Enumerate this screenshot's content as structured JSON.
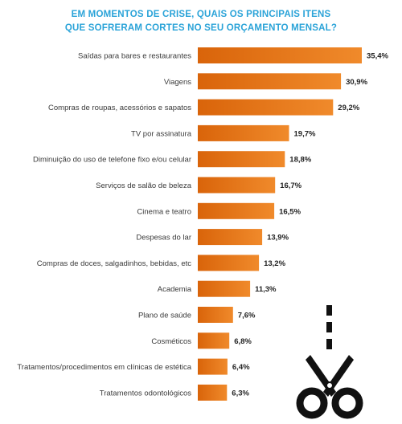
{
  "title_lines": [
    "EM MOMENTOS DE CRISE, QUAIS OS PRINCIPAIS ITENS",
    "QUE SOFRERAM CORTES NO SEU ORÇAMENTO MENSAL?"
  ],
  "colors": {
    "title": "#2aa3d8",
    "bar_light": "#f08a2b",
    "bar_dark": "#d9640a",
    "scissors": "#111111"
  },
  "icons": {
    "decoration": "scissors-icon"
  },
  "chart_data": {
    "type": "bar",
    "orientation": "horizontal",
    "title": "EM MOMENTOS DE CRISE, QUAIS OS PRINCIPAIS ITENS QUE SOFRERAM CORTES NO SEU ORÇAMENTO MENSAL?",
    "categories": [
      "Saídas para bares e restaurantes",
      "Viagens",
      "Compras de roupas, acessórios e sapatos",
      "TV por assinatura",
      "Diminuição do uso de telefone fixo e/ou celular",
      "Serviços de salão de beleza",
      "Cinema e teatro",
      "Despesas do lar",
      "Compras de doces, salgadinhos, bebidas, etc",
      "Academia",
      "Plano de saúde",
      "Cosméticos",
      "Tratamentos/procedimentos em clínicas de estética",
      "Tratamentos odontológicos"
    ],
    "values": [
      35.4,
      30.9,
      29.2,
      19.7,
      18.8,
      16.7,
      16.5,
      13.9,
      13.2,
      11.3,
      7.6,
      6.8,
      6.4,
      6.3
    ],
    "value_labels": [
      "35,4%",
      "30,9%",
      "29,2%",
      "19,7%",
      "18,8%",
      "16,7%",
      "16,5%",
      "13,9%",
      "13,2%",
      "11,3%",
      "7,6%",
      "6,8%",
      "6,4%",
      "6,3%"
    ],
    "xlim": [
      0,
      35.4
    ],
    "grid": false,
    "legend": "none"
  }
}
